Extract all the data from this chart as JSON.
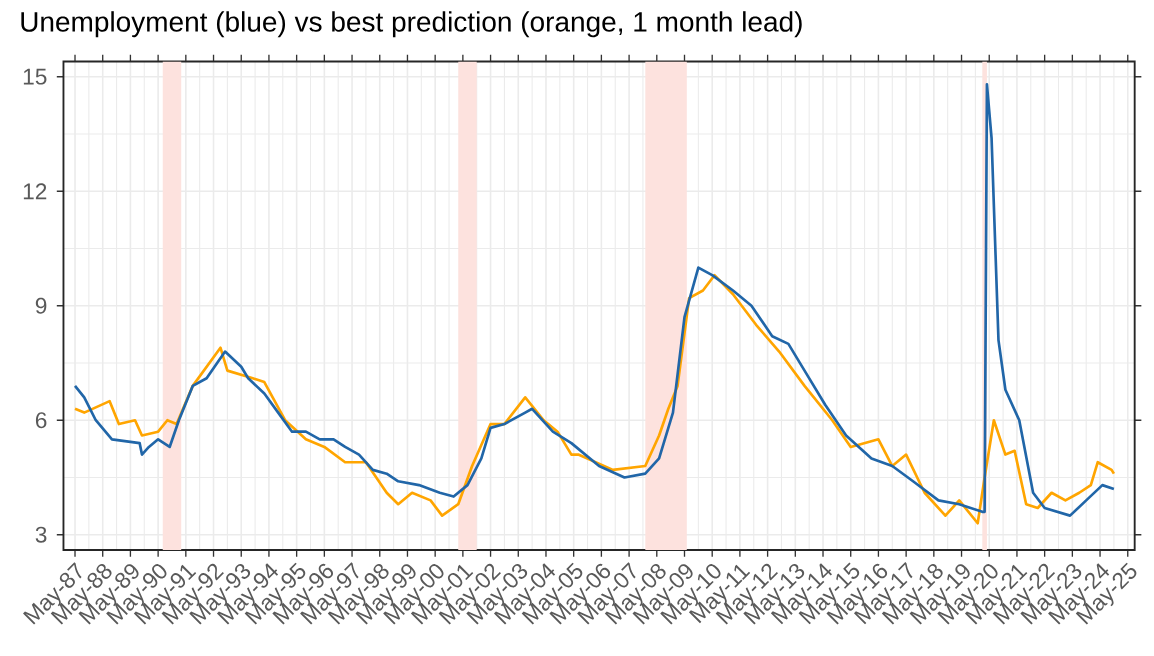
{
  "chart_data": {
    "type": "line",
    "title": "Unemployment (blue) vs best prediction (orange, 1 month lead)",
    "xlim": [
      "1986-12",
      "2025-08"
    ],
    "ylim": [
      2.6,
      15.4
    ],
    "yticks": [
      3,
      6,
      9,
      12,
      15
    ],
    "grid": true,
    "line_style": "solid",
    "xticks": [
      {
        "value": "1987-05",
        "label": "May-87"
      },
      {
        "value": "1988-05",
        "label": "May-88"
      },
      {
        "value": "1989-05",
        "label": "May-89"
      },
      {
        "value": "1990-05",
        "label": "May-90"
      },
      {
        "value": "1991-05",
        "label": "May-91"
      },
      {
        "value": "1992-05",
        "label": "May-92"
      },
      {
        "value": "1993-05",
        "label": "May-93"
      },
      {
        "value": "1994-05",
        "label": "May-94"
      },
      {
        "value": "1995-05",
        "label": "May-95"
      },
      {
        "value": "1996-05",
        "label": "May-96"
      },
      {
        "value": "1997-05",
        "label": "May-97"
      },
      {
        "value": "1998-05",
        "label": "May-98"
      },
      {
        "value": "1999-05",
        "label": "May-99"
      },
      {
        "value": "2000-05",
        "label": "May-00"
      },
      {
        "value": "2001-05",
        "label": "May-01"
      },
      {
        "value": "2002-05",
        "label": "May-02"
      },
      {
        "value": "2003-05",
        "label": "May-03"
      },
      {
        "value": "2004-05",
        "label": "May-04"
      },
      {
        "value": "2005-05",
        "label": "May-05"
      },
      {
        "value": "2006-05",
        "label": "May-06"
      },
      {
        "value": "2007-05",
        "label": "May-07"
      },
      {
        "value": "2008-05",
        "label": "May-08"
      },
      {
        "value": "2009-05",
        "label": "May-09"
      },
      {
        "value": "2010-05",
        "label": "May-10"
      },
      {
        "value": "2011-05",
        "label": "May-11"
      },
      {
        "value": "2012-05",
        "label": "May-12"
      },
      {
        "value": "2013-05",
        "label": "May-13"
      },
      {
        "value": "2014-05",
        "label": "May-14"
      },
      {
        "value": "2015-05",
        "label": "May-15"
      },
      {
        "value": "2016-05",
        "label": "May-16"
      },
      {
        "value": "2017-05",
        "label": "May-17"
      },
      {
        "value": "2018-05",
        "label": "May-18"
      },
      {
        "value": "2019-05",
        "label": "May-19"
      },
      {
        "value": "2020-05",
        "label": "May-20"
      },
      {
        "value": "2021-05",
        "label": "May-21"
      },
      {
        "value": "2022-05",
        "label": "May-22"
      },
      {
        "value": "2023-05",
        "label": "May-23"
      },
      {
        "value": "2024-05",
        "label": "May-24"
      },
      {
        "value": "2025-05",
        "label": "May-25"
      }
    ],
    "bands": [
      {
        "axis": "x",
        "from": "1990-07",
        "to": "1991-03",
        "color": "#fde2de"
      },
      {
        "axis": "x",
        "from": "2001-03",
        "to": "2001-11",
        "color": "#fde2de"
      },
      {
        "axis": "x",
        "from": "2007-12",
        "to": "2009-06",
        "color": "#fde2de"
      },
      {
        "axis": "x",
        "from": "2020-02",
        "to": "2020-04",
        "color": "#fde2de"
      }
    ],
    "series": [
      {
        "color": "#2166a8",
        "x": [
          "1987-05",
          "1987-09",
          "1988-02",
          "1988-09",
          "1989-09",
          "1989-10",
          "1990-01",
          "1990-05",
          "1990-10",
          "1991-02",
          "1991-08",
          "1992-02",
          "1992-10",
          "1993-05",
          "1993-08",
          "1994-03",
          "1994-09",
          "1995-03",
          "1995-09",
          "1996-03",
          "1996-09",
          "1997-02",
          "1997-08",
          "1998-02",
          "1998-08",
          "1999-01",
          "1999-10",
          "2000-07",
          "2001-01",
          "2001-07",
          "2002-01",
          "2002-05",
          "2002-11",
          "2003-08",
          "2003-11",
          "2004-08",
          "2005-04",
          "2006-04",
          "2007-03",
          "2007-12",
          "2008-06",
          "2008-12",
          "2009-05",
          "2009-11",
          "2010-05",
          "2011-02",
          "2011-10",
          "2012-07",
          "2013-02",
          "2013-09",
          "2014-06",
          "2015-03",
          "2016-02",
          "2016-11",
          "2017-08",
          "2018-07",
          "2019-04",
          "2020-02",
          "2020-03",
          "2020-04",
          "2020-06",
          "2020-09",
          "2020-12",
          "2021-06",
          "2021-12",
          "2022-05",
          "2023-04",
          "2023-11",
          "2024-06",
          "2024-11"
        ],
        "values": [
          6.9,
          6.6,
          6.0,
          5.5,
          5.4,
          5.1,
          5.3,
          5.5,
          5.3,
          6.0,
          6.9,
          7.1,
          7.8,
          7.4,
          7.1,
          6.7,
          6.2,
          5.7,
          5.7,
          5.5,
          5.5,
          5.3,
          5.1,
          4.7,
          4.6,
          4.4,
          4.3,
          4.1,
          4.0,
          4.3,
          5.0,
          5.8,
          5.9,
          6.2,
          6.3,
          5.7,
          5.4,
          4.8,
          4.5,
          4.6,
          5.0,
          6.2,
          8.7,
          10.0,
          9.8,
          9.4,
          9.0,
          8.2,
          8.0,
          7.3,
          6.4,
          5.6,
          5.0,
          4.8,
          4.4,
          3.9,
          3.8,
          3.6,
          3.6,
          14.8,
          13.4,
          8.1,
          6.8,
          6.0,
          4.1,
          3.7,
          3.5,
          3.9,
          4.3,
          4.2
        ]
      },
      {
        "color": "#ffa500",
        "x": [
          "1987-05",
          "1987-09",
          "1988-08",
          "1988-12",
          "1989-07",
          "1989-10",
          "1990-05",
          "1990-09",
          "1991-01",
          "1991-08",
          "1992-08",
          "1992-11",
          "1993-10",
          "1994-03",
          "1994-12",
          "1995-09",
          "1996-05",
          "1997-02",
          "1997-11",
          "1998-08",
          "1999-01",
          "1999-07",
          "2000-03",
          "2000-08",
          "2001-03",
          "2001-09",
          "2002-05",
          "2002-11",
          "2003-08",
          "2004-04",
          "2004-10",
          "2005-04",
          "2005-07",
          "2006-10",
          "2007-12",
          "2008-06",
          "2008-10",
          "2009-02",
          "2009-07",
          "2010-01",
          "2010-06",
          "2011-02",
          "2011-12",
          "2012-10",
          "2013-09",
          "2014-09",
          "2015-05",
          "2016-05",
          "2016-11",
          "2017-05",
          "2018-01",
          "2018-10",
          "2019-04",
          "2019-12",
          "2020-03",
          "2020-07",
          "2020-12",
          "2021-04",
          "2021-09",
          "2022-02",
          "2022-08",
          "2023-02",
          "2023-08",
          "2024-01",
          "2024-04",
          "2024-10",
          "2024-11"
        ],
        "values": [
          6.3,
          6.2,
          6.5,
          5.9,
          6.0,
          5.6,
          5.7,
          6.0,
          5.9,
          6.9,
          7.9,
          7.3,
          7.1,
          7.0,
          6.0,
          5.5,
          5.3,
          4.9,
          4.9,
          4.1,
          3.8,
          4.1,
          3.9,
          3.5,
          3.8,
          4.8,
          5.9,
          5.9,
          6.6,
          6.0,
          5.7,
          5.1,
          5.1,
          4.7,
          4.8,
          5.6,
          6.3,
          6.9,
          9.2,
          9.4,
          9.8,
          9.3,
          8.5,
          7.8,
          6.9,
          6.0,
          5.3,
          5.5,
          4.8,
          5.1,
          4.1,
          3.5,
          3.9,
          3.3,
          4.5,
          6.0,
          5.1,
          5.2,
          3.8,
          3.7,
          4.1,
          3.9,
          4.1,
          4.3,
          4.9,
          4.7,
          4.6
        ]
      }
    ]
  }
}
